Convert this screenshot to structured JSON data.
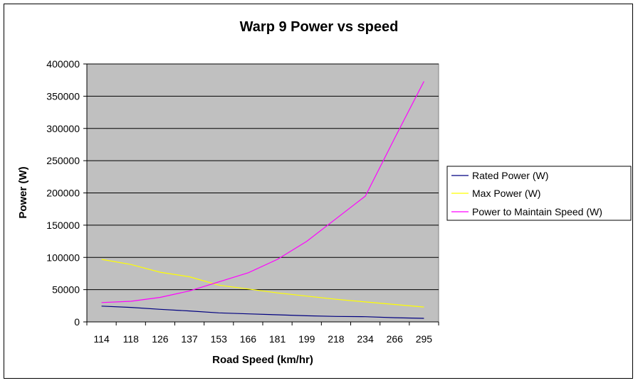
{
  "chart_data": {
    "type": "line",
    "title": "Warp 9 Power vs speed",
    "xlabel": "Road Speed (km/hr)",
    "ylabel": "Power (W)",
    "ylim": [
      0,
      400000
    ],
    "yticks": [
      "0",
      "50000",
      "100000",
      "150000",
      "200000",
      "250000",
      "300000",
      "350000",
      "400000"
    ],
    "categories": [
      "114",
      "118",
      "126",
      "137",
      "153",
      "166",
      "181",
      "199",
      "218",
      "234",
      "266",
      "295"
    ],
    "grid": "horizontal",
    "plot_background": "#c0c0c0",
    "legend_position": "right",
    "series": [
      {
        "name": "Rated Power (W)",
        "color": "#000080",
        "values": [
          24500,
          22500,
          19500,
          17000,
          14000,
          12500,
          11000,
          9500,
          8500,
          8000,
          6500,
          5500
        ]
      },
      {
        "name": "Max Power (W)",
        "color": "#ffff00",
        "values": [
          97000,
          89000,
          77000,
          70000,
          57000,
          51000,
          45000,
          40000,
          35000,
          31000,
          27000,
          23000
        ]
      },
      {
        "name": "Power to Maintain Speed (W)",
        "color": "#ff00ff",
        "values": [
          30000,
          32000,
          38000,
          48000,
          62000,
          76000,
          97000,
          125000,
          160000,
          195000,
          285000,
          373000
        ]
      }
    ]
  }
}
